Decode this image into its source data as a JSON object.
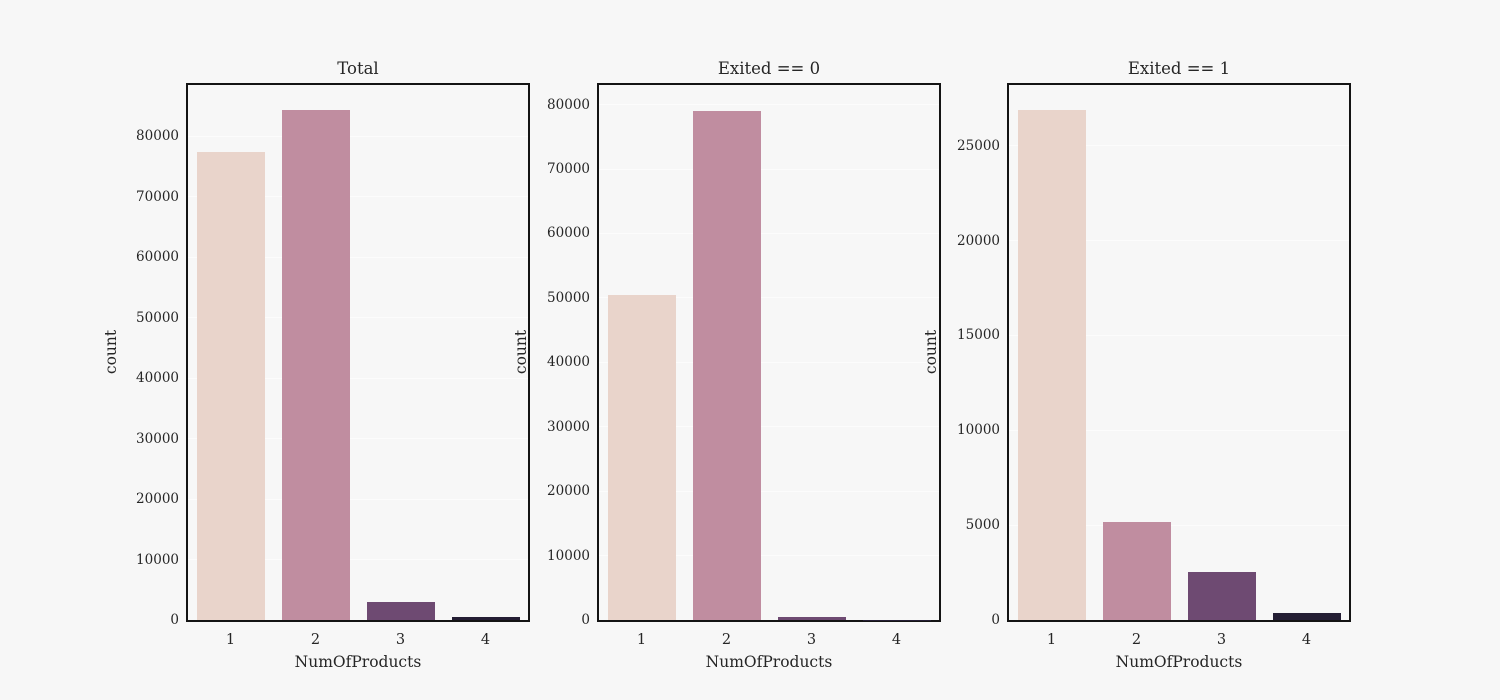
{
  "figure": {
    "background": "#f7f7f7",
    "axes_background": "#f7f7f7",
    "grid_color": "#fcfcfc",
    "spine_color": "#141414",
    "text_color": "#262626",
    "bar_palette": [
      "#e9d4cb",
      "#c08da0",
      "#6e4a72",
      "#241e34"
    ]
  },
  "chart_data": [
    {
      "type": "bar",
      "title": "Total",
      "xlabel": "NumOfProducts",
      "ylabel": "count",
      "categories": [
        "1",
        "2",
        "3",
        "4"
      ],
      "values": [
        77350,
        84250,
        2980,
        450
      ],
      "ylim": [
        0,
        88450
      ],
      "yticks": [
        0,
        10000,
        20000,
        30000,
        40000,
        50000,
        60000,
        70000,
        80000
      ],
      "grid": true,
      "legend": false
    },
    {
      "type": "bar",
      "title": "Exited == 0",
      "xlabel": "NumOfProducts",
      "ylabel": "count",
      "categories": [
        "1",
        "2",
        "3",
        "4"
      ],
      "values": [
        50490,
        79090,
        450,
        80
      ],
      "ylim": [
        0,
        83050
      ],
      "yticks": [
        0,
        10000,
        20000,
        30000,
        40000,
        50000,
        60000,
        70000,
        80000
      ],
      "grid": true,
      "legend": false
    },
    {
      "type": "bar",
      "title": "Exited == 1",
      "xlabel": "NumOfProducts",
      "ylabel": "count",
      "categories": [
        "1",
        "2",
        "3",
        "4"
      ],
      "values": [
        26860,
        5160,
        2530,
        370
      ],
      "ylim": [
        0,
        28200
      ],
      "yticks": [
        0,
        5000,
        10000,
        15000,
        20000,
        25000
      ],
      "grid": true,
      "legend": false
    }
  ]
}
